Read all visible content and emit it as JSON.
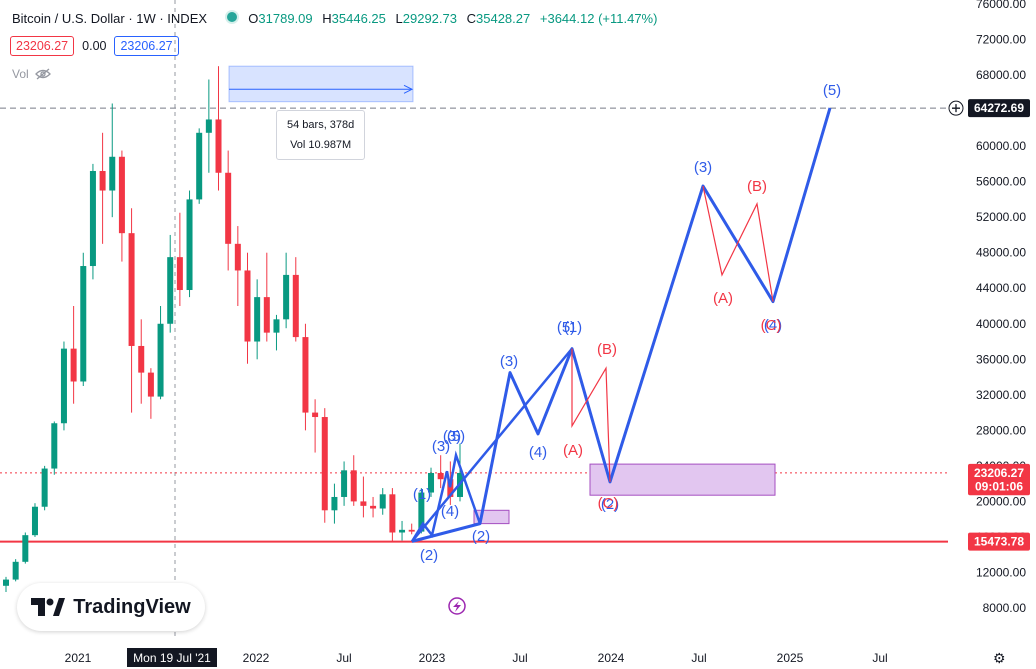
{
  "header": {
    "symbol": "Bitcoin / U.S. Dollar · 1W · INDEX",
    "o_label": "O",
    "o_value": "31789.09",
    "h_label": "H",
    "h_value": "35446.25",
    "l_label": "L",
    "l_value": "29292.73",
    "c_label": "C",
    "c_value": "35428.27",
    "change": "+3644.12 (+11.47%)"
  },
  "pills": {
    "sell": "23206.27",
    "spread": "0.00",
    "buy": "23206.27"
  },
  "volume": {
    "label": "Vol"
  },
  "tooltip": {
    "line1": "54 bars, 378d",
    "line2": "Vol 10.987M"
  },
  "logo": {
    "text": "TradingView"
  },
  "colors": {
    "up": "#089981",
    "down": "#f23645",
    "wave_blue": "#2f5be8",
    "wave_red": "#f23645",
    "zone": "#e2c6f0",
    "zone_border": "#a44ec0"
  },
  "chart_data": {
    "type": "candlestick",
    "y_ticks": [
      "76000.00",
      "72000.00",
      "68000.00",
      "64000.00",
      "60000.00",
      "56000.00",
      "52000.00",
      "48000.00",
      "44000.00",
      "40000.00",
      "36000.00",
      "32000.00",
      "28000.00",
      "24000.00",
      "20000.00",
      "16000.00",
      "12000.00",
      "8000.00"
    ],
    "x_ticks": [
      "2021",
      "Mon 19 Jul '21",
      "2022",
      "Jul",
      "2023",
      "Jul",
      "2024",
      "Jul",
      "2025",
      "Jul"
    ],
    "price_labels": [
      {
        "text": "64272.69",
        "value": 64272.69,
        "bg": "#131722"
      },
      {
        "text": "23206.27",
        "value": 23206.27,
        "bg": "#f23645"
      },
      {
        "text": "09:01:06",
        "value": 21700,
        "bg": "#f23645"
      },
      {
        "text": "15473.78",
        "value": 15473.78,
        "bg": "#f23645"
      }
    ],
    "horizontal_lines": [
      {
        "value": 64272.69,
        "style": "dashed",
        "color": "#787b86"
      },
      {
        "value": 23206.27,
        "style": "dotted",
        "color": "#f23645"
      },
      {
        "value": 15473.78,
        "style": "solid",
        "color": "#f23645"
      }
    ],
    "candles_ohlc_summary": [
      [
        10500,
        11500,
        9800,
        11200
      ],
      [
        11200,
        13500,
        11000,
        13200
      ],
      [
        13200,
        16500,
        13000,
        16200
      ],
      [
        16200,
        19800,
        16000,
        19400
      ],
      [
        19400,
        24000,
        19000,
        23700
      ],
      [
        23700,
        29000,
        23000,
        28800
      ],
      [
        28800,
        38000,
        28000,
        37200
      ],
      [
        37200,
        42000,
        31000,
        33500
      ],
      [
        33500,
        48000,
        33000,
        46500
      ],
      [
        46500,
        58000,
        45000,
        57200
      ],
      [
        57200,
        61500,
        49000,
        55000
      ],
      [
        55000,
        64800,
        52000,
        58800
      ],
      [
        58800,
        59500,
        47000,
        50200
      ],
      [
        50200,
        53000,
        30000,
        37500
      ],
      [
        37500,
        40500,
        31000,
        34500
      ],
      [
        34500,
        35000,
        29300,
        31800
      ],
      [
        31800,
        42000,
        31500,
        40000
      ],
      [
        40000,
        50000,
        39000,
        47500
      ],
      [
        47500,
        52500,
        42000,
        43800
      ],
      [
        43800,
        55000,
        43000,
        54000
      ],
      [
        54000,
        62000,
        53500,
        61500
      ],
      [
        61500,
        67500,
        57000,
        63000
      ],
      [
        63000,
        69000,
        55000,
        57000
      ],
      [
        57000,
        59500,
        46000,
        49000
      ],
      [
        49000,
        51000,
        42000,
        46000
      ],
      [
        46000,
        48000,
        35500,
        38000
      ],
      [
        38000,
        45000,
        36000,
        43000
      ],
      [
        43000,
        48000,
        38000,
        39000
      ],
      [
        39000,
        41000,
        37000,
        40500
      ],
      [
        40500,
        48000,
        39500,
        45500
      ],
      [
        45500,
        47500,
        38000,
        38500
      ],
      [
        38500,
        40000,
        28000,
        30000
      ],
      [
        30000,
        31500,
        25500,
        29500
      ],
      [
        29500,
        30500,
        17600,
        19000
      ],
      [
        19000,
        22000,
        17500,
        20500
      ],
      [
        20500,
        24500,
        19500,
        23500
      ],
      [
        23500,
        25200,
        19500,
        20000
      ],
      [
        20000,
        22800,
        18200,
        19500
      ],
      [
        19500,
        20500,
        18200,
        19200
      ],
      [
        19200,
        21500,
        18500,
        20800
      ],
      [
        20800,
        21500,
        15500,
        16500
      ],
      [
        16500,
        17800,
        15600,
        16800
      ],
      [
        16800,
        17500,
        16300,
        16600
      ],
      [
        16600,
        21500,
        16400,
        21000
      ],
      [
        21000,
        23800,
        20500,
        23200
      ],
      [
        23200,
        25200,
        21500,
        22500
      ],
      [
        22500,
        24500,
        19600,
        20500
      ],
      [
        20500,
        26500,
        20000,
        23206
      ]
    ],
    "measure": {
      "bars": "54 bars",
      "days": "378d",
      "from_value": 68000,
      "to_value": 66000
    },
    "blue_wave_labels": [
      "(1)",
      "(2)",
      "(3)",
      "(4)",
      "(5)",
      "(3)",
      "(4)",
      "(2)",
      "(3)",
      "(4)",
      "(5)",
      "(1)",
      "(2)",
      "(3)",
      "(4)",
      "(5)"
    ],
    "red_wave_labels": [
      "(A)",
      "(B)",
      "(C)",
      "(A)",
      "(B)",
      "(C)"
    ],
    "zones": [
      {
        "x_from": "2023-03",
        "x_to": "2023-04",
        "y_from": 17500,
        "y_to": 19000
      },
      {
        "x_from": "2023-10",
        "x_to": "2024-11",
        "y_from": 20700,
        "y_to": 24200
      }
    ]
  }
}
